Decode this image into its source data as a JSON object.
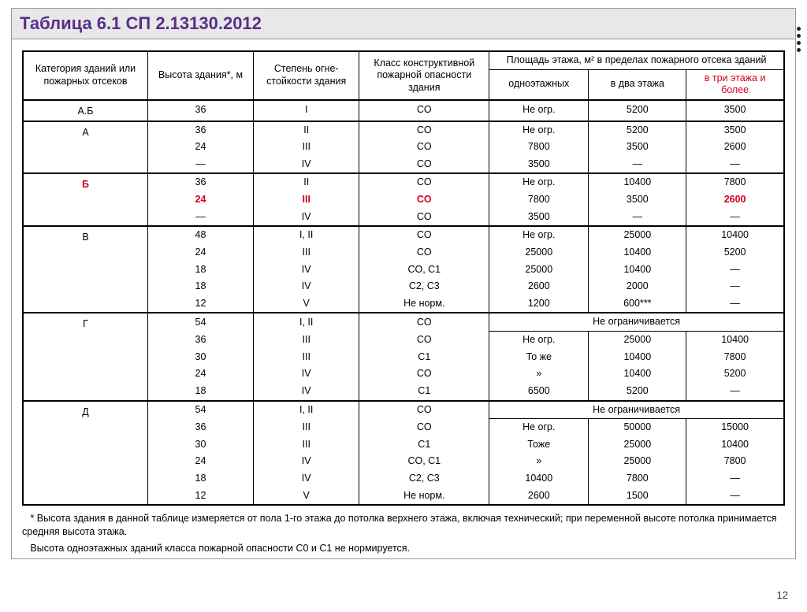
{
  "title": "Таблица 6.1 СП 2.13130.2012",
  "colors": {
    "title": "#5a2e8a",
    "header_bg": "#e8e8e8",
    "highlight": "#d1001f",
    "border": "#000000",
    "text": "#000000"
  },
  "headers": {
    "cat": "Категория зданий или пожарных отсеков",
    "height": "Высота здания*, м",
    "fire_res": "Степень огне-\nстойкости здания",
    "class": "Класс конструктивной пожарной опасности здания",
    "area": "Площадь этажа, м² в пределах пожарного отсека зданий",
    "one": "одноэтажных",
    "two": "в два этажа",
    "three": "в три этажа и более"
  },
  "sections": [
    {
      "cat": "А.Б",
      "rows": [
        {
          "h": "36",
          "r": "I",
          "c": "CO",
          "a1": "Не огр.",
          "a2": "5200",
          "a3": "3500"
        }
      ]
    },
    {
      "cat": "А",
      "rows": [
        {
          "h": "36",
          "r": "II",
          "c": "CO",
          "a1": "Не огр.",
          "a2": "5200",
          "a3": "3500"
        },
        {
          "h": "24",
          "r": "III",
          "c": "CO",
          "a1": "7800",
          "a2": "3500",
          "a3": "2600"
        },
        {
          "h": "—",
          "r": "IV",
          "c": "CO",
          "a1": "3500",
          "a2": "—",
          "a3": "—"
        }
      ]
    },
    {
      "cat": "Б",
      "cat_hl": true,
      "rows": [
        {
          "h": "36",
          "r": "II",
          "c": "CO",
          "a1": "Не огр.",
          "a2": "10400",
          "a3": "7800"
        },
        {
          "h": "24",
          "r": "III",
          "c": "CO",
          "a1": "7800",
          "a2": "3500",
          "a3": "2600",
          "hl": true
        },
        {
          "h": "—",
          "r": "IV",
          "c": "CO",
          "a1": "3500",
          "a2": "—",
          "a3": "—"
        }
      ]
    },
    {
      "cat": "В",
      "rows": [
        {
          "h": "48",
          "r": "I, II",
          "c": "CO",
          "a1": "Не огр.",
          "a2": "25000",
          "a3": "10400"
        },
        {
          "h": "24",
          "r": "III",
          "c": "CO",
          "a1": "25000",
          "a2": "10400",
          "a3": "5200"
        },
        {
          "h": "18",
          "r": "IV",
          "c": "CO, С1",
          "a1": "25000",
          "a2": "10400",
          "a3": "—"
        },
        {
          "h": "18",
          "r": "IV",
          "c": "С2, С3",
          "a1": "2600",
          "a2": "2000",
          "a3": "—"
        },
        {
          "h": "12",
          "r": "V",
          "c": "Не норм.",
          "a1": "1200",
          "a2": "600***",
          "a3": "—"
        }
      ]
    },
    {
      "cat": "Г",
      "span_text": "Не ограничивается",
      "span_rows": 1,
      "rows": [
        {
          "h": "54",
          "r": "I, II",
          "c": "CO",
          "span": true
        },
        {
          "h": "36",
          "r": "III",
          "c": "CO",
          "a1": "Не огр.",
          "a2": "25000",
          "a3": "10400"
        },
        {
          "h": "30",
          "r": "III",
          "c": "С1",
          "a1": "То же",
          "a2": "10400",
          "a3": "7800"
        },
        {
          "h": "24",
          "r": "IV",
          "c": "CO",
          "a1": "»",
          "a2": "10400",
          "a3": "5200"
        },
        {
          "h": "18",
          "r": "IV",
          "c": "С1",
          "a1": "6500",
          "a2": "5200",
          "a3": "—"
        }
      ]
    },
    {
      "cat": "Д",
      "span_text": "Не ограничивается",
      "span_rows": 1,
      "rows": [
        {
          "h": "54",
          "r": "I, II",
          "c": "CO",
          "span": true
        },
        {
          "h": "36",
          "r": "III",
          "c": "CO",
          "a1": "Не огр.",
          "a2": "50000",
          "a3": "15000"
        },
        {
          "h": "30",
          "r": "III",
          "c": "С1",
          "a1": "Тоже",
          "a2": "25000",
          "a3": "10400"
        },
        {
          "h": "24",
          "r": "IV",
          "c": "CO, С1",
          "a1": "»",
          "a2": "25000",
          "a3": "7800"
        },
        {
          "h": "18",
          "r": "IV",
          "c": "С2, С3",
          "a1": "10400",
          "a2": "7800",
          "a3": "—"
        },
        {
          "h": "12",
          "r": "V",
          "c": "Не норм.",
          "a1": "2600",
          "a2": "1500",
          "a3": "—"
        }
      ]
    }
  ],
  "footnote1": "* Высота здания в данной таблице измеряется от пола 1-го этажа до потолка верхнего этажа, включая технический; при переменной высоте потолка принимается средняя высота этажа.",
  "footnote2": "Высота одноэтажных зданий класса пожарной опасности С0 и С1 не нормируется.",
  "page": "12"
}
